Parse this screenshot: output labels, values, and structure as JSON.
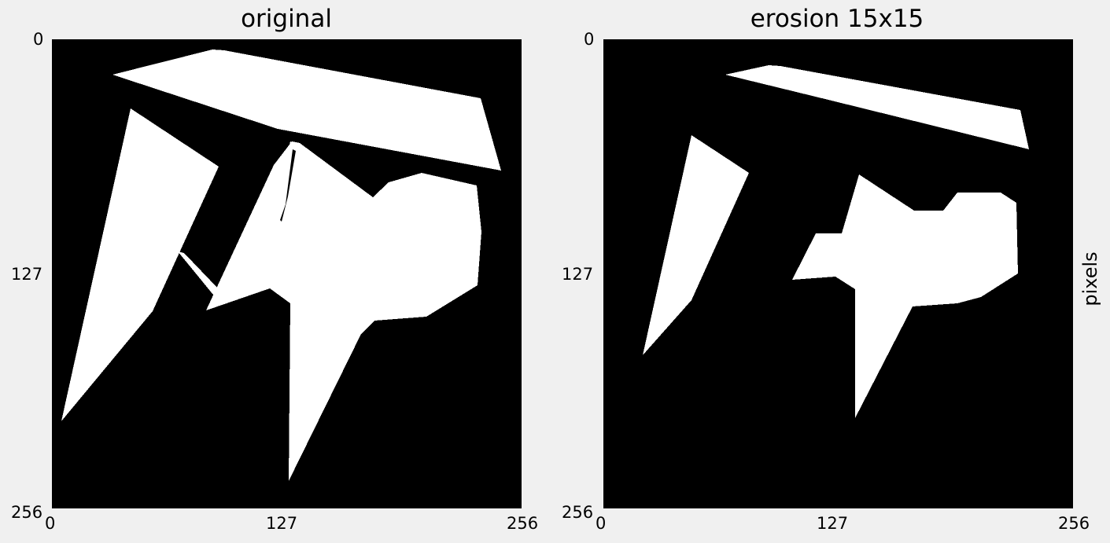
{
  "panels": [
    {
      "title": "original",
      "x_ticks": [
        "0",
        "127",
        "256"
      ],
      "y_ticks": [
        "0",
        "127",
        "256"
      ]
    },
    {
      "title": "erosion 15x15",
      "x_ticks": [
        "0",
        "127",
        "256"
      ],
      "y_ticks": [
        "0",
        "127",
        "256"
      ]
    }
  ],
  "ylabel": "pixels",
  "colors": {
    "background": "#000000",
    "foreground": "#ffffff",
    "figure": "#f0f0f0"
  }
}
